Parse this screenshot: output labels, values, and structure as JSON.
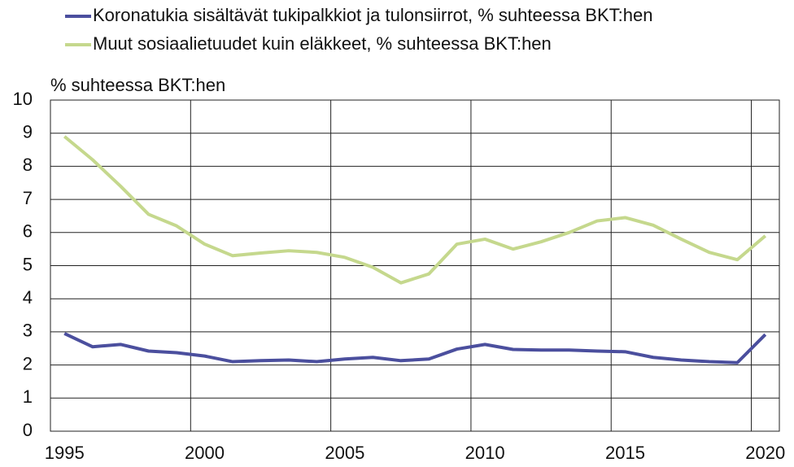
{
  "chart_data": {
    "type": "line",
    "y_axis_label": "% suhteessa BKT:hen",
    "categories": [
      "1995",
      null,
      null,
      null,
      null,
      "2000",
      null,
      null,
      null,
      null,
      "2005",
      null,
      null,
      null,
      null,
      "2010",
      null,
      null,
      null,
      null,
      "2015",
      null,
      null,
      null,
      null,
      "2020"
    ],
    "series": [
      {
        "name": "Koronatukia sisältävät tukipalkkiot ja tulonsiirrot, % suhteessa BKT:hen",
        "color": "#4b4f9e",
        "values": [
          2.95,
          2.55,
          2.62,
          2.42,
          2.37,
          2.27,
          2.1,
          2.13,
          2.15,
          2.1,
          2.18,
          2.23,
          2.13,
          2.18,
          2.48,
          2.62,
          2.47,
          2.45,
          2.45,
          2.42,
          2.4,
          2.23,
          2.15,
          2.1,
          2.07,
          2.92
        ]
      },
      {
        "name": "Muut sosiaalietuudet kuin eläkkeet, % suhteessa BKT:hen",
        "color": "#c5d88d",
        "values": [
          8.9,
          8.2,
          7.4,
          6.55,
          6.2,
          5.65,
          5.3,
          5.38,
          5.45,
          5.4,
          5.25,
          4.95,
          4.48,
          4.75,
          5.65,
          5.8,
          5.5,
          5.72,
          6.0,
          6.35,
          6.45,
          6.22,
          5.8,
          5.4,
          5.18,
          5.9
        ]
      }
    ],
    "ylim": [
      0,
      10
    ],
    "yticks": [
      0,
      1,
      2,
      3,
      4,
      5,
      6,
      7,
      8,
      9,
      10
    ],
    "grid": true,
    "legend": "top"
  }
}
